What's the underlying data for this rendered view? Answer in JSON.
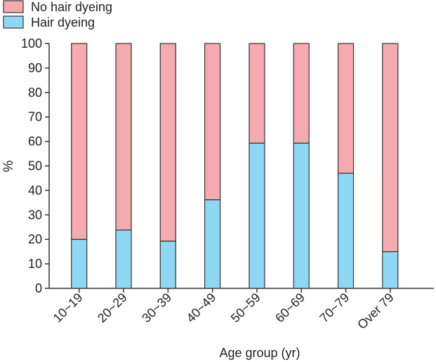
{
  "chart_data": {
    "type": "bar",
    "stacked": true,
    "categories": [
      "10~19",
      "20~29",
      "30~39",
      "40~49",
      "50~59",
      "60~69",
      "70~79",
      "Over 79"
    ],
    "series": [
      {
        "name": "Hair dyeing",
        "color": "#8fd8f5",
        "values": [
          20.0,
          23.8,
          19.3,
          36.2,
          59.3,
          59.3,
          47.0,
          15.0
        ]
      },
      {
        "name": "No hair dyeing",
        "color": "#f4aaae",
        "values": [
          80.0,
          76.2,
          80.7,
          63.8,
          40.7,
          40.7,
          53.0,
          85.0
        ]
      }
    ],
    "xlabel": "Age group (yr)",
    "ylabel": "%",
    "ylim": [
      0,
      100
    ],
    "yticks": [
      "0",
      "10",
      "20",
      "30",
      "40",
      "50",
      "60",
      "70",
      "80",
      "90",
      "100"
    ],
    "legend": {
      "placement": "top-left",
      "entries": [
        "No hair dyeing",
        "Hair dyeing"
      ]
    },
    "grid": false
  }
}
